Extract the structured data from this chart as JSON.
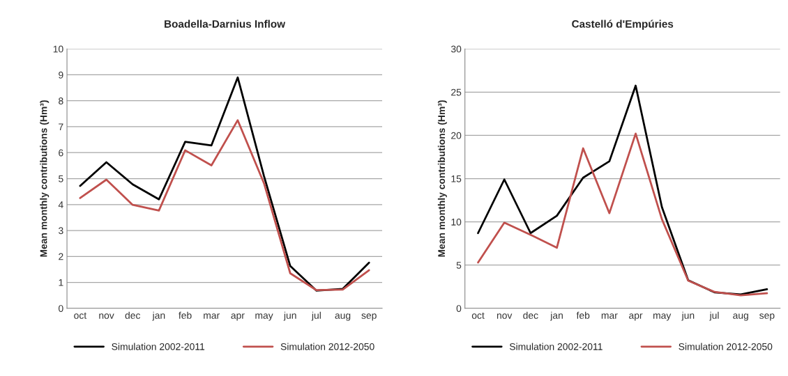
{
  "chart_data": [
    {
      "type": "line",
      "title": "Boadella-Darnius Inflow",
      "ylabel": "Mean monthly contributions (Hm³)",
      "categories": [
        "oct",
        "nov",
        "dec",
        "jan",
        "feb",
        "mar",
        "apr",
        "may",
        "jun",
        "jul",
        "aug",
        "sep"
      ],
      "series": [
        {
          "name": "Simulation 2002-2011",
          "color": "#000000",
          "values": [
            4.72,
            5.63,
            4.78,
            4.2,
            6.42,
            6.28,
            8.9,
            5.1,
            1.63,
            0.68,
            0.75,
            1.76
          ]
        },
        {
          "name": "Simulation 2012-2050",
          "color": "#c0504d",
          "values": [
            4.25,
            4.96,
            3.99,
            3.77,
            6.09,
            5.51,
            7.25,
            4.82,
            1.35,
            0.7,
            0.72,
            1.47
          ]
        }
      ],
      "ylim": [
        0,
        10
      ],
      "yticks": [
        0,
        1,
        2,
        3,
        4,
        5,
        6,
        7,
        8,
        9,
        10
      ],
      "grid": "y",
      "legend": "bottom"
    },
    {
      "type": "line",
      "title": "Castelló d'Empúries",
      "ylabel": "Mean monthly contributions (Hm³)",
      "categories": [
        "oct",
        "nov",
        "dec",
        "jan",
        "feb",
        "mar",
        "apr",
        "may",
        "jun",
        "jul",
        "aug",
        "sep"
      ],
      "series": [
        {
          "name": "Simulation 2002-2011",
          "color": "#000000",
          "values": [
            8.7,
            14.9,
            8.7,
            10.7,
            15.1,
            17.0,
            25.75,
            11.7,
            3.25,
            1.85,
            1.6,
            2.2
          ]
        },
        {
          "name": "Simulation 2012-2050",
          "color": "#c0504d",
          "values": [
            5.3,
            9.9,
            8.5,
            7.0,
            18.5,
            11.0,
            20.2,
            10.3,
            3.2,
            1.9,
            1.5,
            1.75
          ]
        }
      ],
      "ylim": [
        0,
        30
      ],
      "yticks": [
        0,
        5,
        10,
        15,
        20,
        25,
        30
      ],
      "grid": "y",
      "legend": "bottom"
    }
  ]
}
